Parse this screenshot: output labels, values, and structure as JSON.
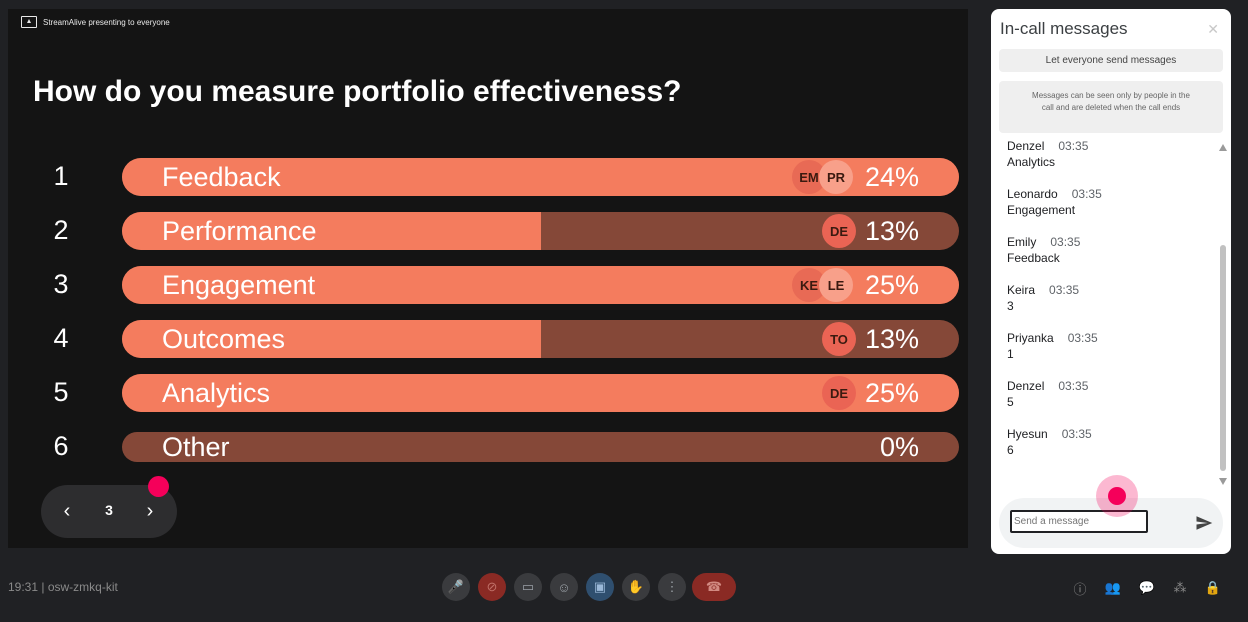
{
  "slide": {
    "presenter_banner": "StreamAlive presenting to everyone",
    "question": "How do you measure portfolio effectiveness?",
    "options": [
      {
        "num": "1",
        "label": "Feedback",
        "pct_text": "24%",
        "fill": 1.0,
        "avatars": [
          "EM",
          "PR"
        ]
      },
      {
        "num": "2",
        "label": "Performance",
        "pct_text": "13%",
        "fill": 0.5,
        "avatars": [
          "DE"
        ]
      },
      {
        "num": "3",
        "label": "Engagement",
        "pct_text": "25%",
        "fill": 1.0,
        "avatars": [
          "KE",
          "LE"
        ]
      },
      {
        "num": "4",
        "label": "Outcomes",
        "pct_text": "13%",
        "fill": 0.5,
        "avatars": [
          "TO"
        ]
      },
      {
        "num": "5",
        "label": "Analytics",
        "pct_text": "25%",
        "fill": 1.0,
        "avatars": [
          "DE"
        ]
      },
      {
        "num": "6",
        "label": "Other",
        "pct_text": "0%",
        "fill": 0.0,
        "avatars": []
      }
    ],
    "pager": {
      "page": "3",
      "prev_icon": "‹",
      "next_icon": "›"
    }
  },
  "chat": {
    "title": "In-call messages",
    "close_icon": "✕",
    "let_everyone": "Let everyone send messages",
    "notice": "Messages can be seen only by people in the call and are deleted when the call ends",
    "messages": [
      {
        "sender": "Denzel",
        "time": "03:35",
        "text": "Analytics"
      },
      {
        "sender": "Leonardo",
        "time": "03:35",
        "text": "Engagement"
      },
      {
        "sender": "Emily",
        "time": "03:35",
        "text": "Feedback"
      },
      {
        "sender": "Keira",
        "time": "03:35",
        "text": "3"
      },
      {
        "sender": "Priyanka",
        "time": "03:35",
        "text": "1"
      },
      {
        "sender": "Denzel",
        "time": "03:35",
        "text": "5"
      },
      {
        "sender": "Hyesun",
        "time": "03:35",
        "text": "6"
      }
    ],
    "input_placeholder": "Send a message"
  },
  "bottombar": {
    "meeting_info": "19:31  |  osw-zmkq-kit",
    "controls": [
      {
        "name": "mic-button",
        "icon": "🎤"
      },
      {
        "name": "camera-off-button",
        "icon": "⊘"
      },
      {
        "name": "captions-button",
        "icon": "▭"
      },
      {
        "name": "reactions-button",
        "icon": "☺"
      },
      {
        "name": "present-button",
        "icon": "▣"
      },
      {
        "name": "raise-hand-button",
        "icon": "✋"
      },
      {
        "name": "more-options-button",
        "icon": "⋮"
      }
    ],
    "end_call_icon": "☎",
    "right_controls": [
      {
        "name": "info-button",
        "icon": "ⓘ"
      },
      {
        "name": "people-button",
        "icon": "👥"
      },
      {
        "name": "chat-button",
        "icon": "💬"
      },
      {
        "name": "activities-button",
        "icon": "⁂"
      },
      {
        "name": "host-controls-button",
        "icon": "🔒"
      }
    ]
  },
  "colors": {
    "bar_filled": "#f47c5e",
    "bar_empty": "#854838",
    "accent_pink": "#f5005a"
  }
}
